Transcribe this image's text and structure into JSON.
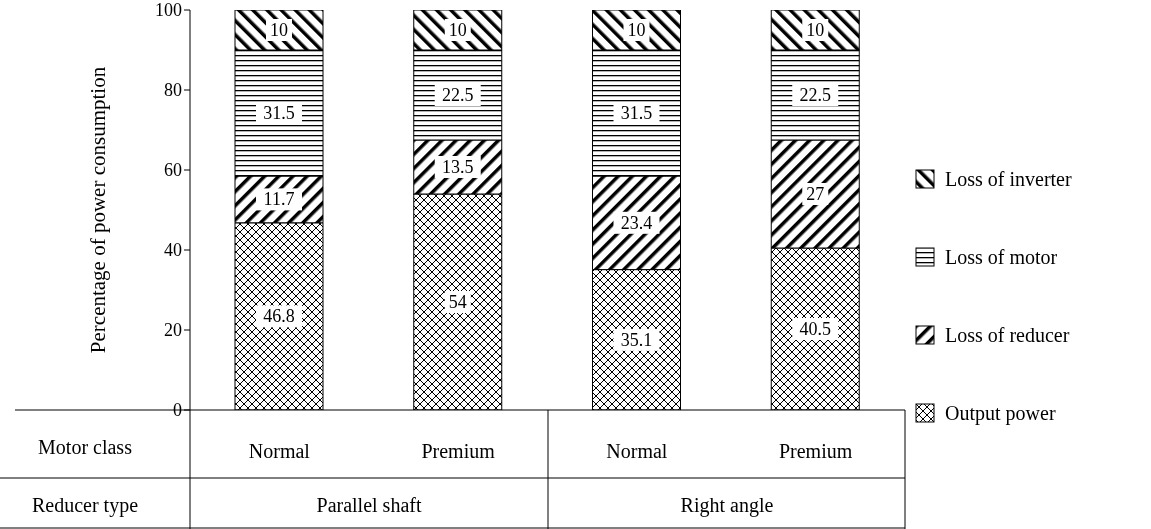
{
  "chart_data": {
    "type": "bar",
    "stacked": true,
    "ylabel": "Percentage of power consumption",
    "categories": [
      "Normal",
      "Premium",
      "Normal",
      "Premium"
    ],
    "series": [
      {
        "name": "Output power",
        "color": "#000000",
        "values": [
          46.8,
          54,
          35.1,
          40.5
        ]
      },
      {
        "name": "Loss of reducer",
        "color": "#000000",
        "values": [
          11.7,
          13.5,
          23.4,
          27
        ]
      },
      {
        "name": "Loss of motor",
        "color": "#000000",
        "values": [
          31.5,
          22.5,
          31.5,
          22.5
        ]
      },
      {
        "name": "Loss of inverter",
        "color": "#000000",
        "values": [
          10,
          10,
          10,
          10
        ]
      }
    ],
    "ylim": [
      0,
      100
    ],
    "yticks": [
      0,
      20,
      40,
      60,
      80,
      100
    ],
    "legend": "right",
    "data_labels": true,
    "annotations": [
      "Motor class",
      "Reducer type",
      "Parallel shaft",
      "Right angle"
    ]
  }
}
